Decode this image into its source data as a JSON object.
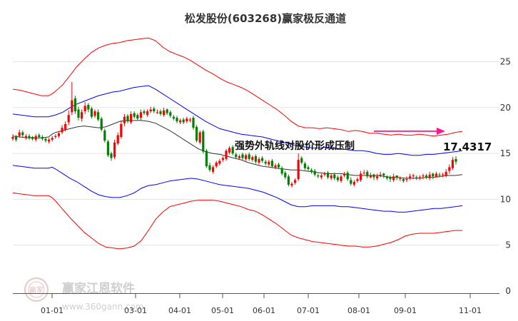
{
  "chart_data": {
    "type": "candlestick",
    "title": "松发股份(603268)赢家极反通道",
    "ylim": [
      0,
      28
    ],
    "yticks": [
      "0",
      "5",
      "10",
      "15",
      "20",
      "25"
    ],
    "xticks": [
      "01-01",
      "03-01",
      "04-01",
      "05-01",
      "06-01",
      "07-01",
      "08-01",
      "09-01",
      "11-01"
    ],
    "grid": "horizontal",
    "annotation": {
      "text": "强势外轨线对股价形成压制",
      "value": "17.4317",
      "y": 17.43
    },
    "close": [
      16.8,
      16.5,
      17.3,
      17.0,
      16.9,
      16.7,
      16.6,
      16.9,
      16.8,
      16.6,
      16.4,
      16.5,
      16.7,
      16.9,
      17.2,
      17.8,
      18.2,
      19.2,
      20.8,
      19.6,
      18.9,
      19.5,
      20.2,
      19.8,
      19.0,
      19.6,
      18.7,
      17.6,
      16.4,
      14.8,
      14.5,
      16.2,
      17.0,
      18.2,
      19.0,
      18.5,
      19.3,
      19.0,
      18.8,
      19.5,
      19.4,
      19.6,
      19.8,
      19.6,
      19.5,
      19.3,
      19.7,
      19.4,
      19.1,
      18.8,
      18.5,
      18.6,
      18.4,
      18.8,
      18.7,
      17.8,
      16.4,
      17.3,
      15.2,
      13.6,
      13.2,
      13.5,
      14.0,
      14.2,
      14.5,
      15.3,
      15.6,
      15.0,
      14.6,
      14.7,
      14.5,
      14.8,
      14.4,
      14.6,
      14.1,
      14.4,
      14.2,
      13.9,
      14.1,
      13.6,
      13.7,
      13.5,
      12.8,
      12.4,
      11.6,
      11.7,
      12.1,
      14.3,
      14.0,
      13.4,
      13.3,
      13.0,
      12.7,
      12.5,
      12.6,
      12.8,
      12.4,
      12.6,
      12.3,
      12.1,
      12.5,
      12.8,
      12.2,
      11.7,
      11.9,
      12.2,
      12.8,
      12.9,
      12.5,
      12.6,
      12.4,
      12.5,
      12.7,
      12.6,
      12.3,
      12.2,
      12.5,
      12.4,
      12.3,
      12.0,
      12.2,
      12.5,
      12.6,
      12.3,
      12.4,
      12.6,
      12.4,
      12.7,
      12.5,
      12.8,
      12.6,
      12.7,
      13.0,
      13.5,
      14.3,
      14.1
    ],
    "open": [
      16.6,
      16.9,
      16.9,
      17.3,
      16.7,
      16.9,
      16.8,
      16.5,
      17.0,
      16.8,
      16.6,
      16.3,
      16.5,
      16.8,
      16.9,
      17.3,
      17.6,
      18.4,
      19.5,
      21.0,
      19.8,
      18.8,
      19.6,
      20.3,
      19.9,
      19.1,
      19.5,
      18.8,
      17.5,
      16.3,
      15.0,
      14.6,
      16.1,
      16.8,
      18.3,
      19.1,
      18.4,
      19.4,
      19.2,
      18.9,
      19.6,
      19.2,
      19.6,
      19.9,
      19.5,
      19.6,
      19.2,
      19.8,
      19.5,
      19.0,
      18.9,
      18.4,
      18.7,
      18.5,
      18.6,
      18.9,
      17.9,
      16.2,
      17.4,
      15.3,
      13.7,
      13.0,
      13.6,
      13.9,
      14.3,
      14.4,
      15.1,
      15.7,
      14.9,
      14.5,
      14.9,
      14.4,
      14.9,
      14.3,
      14.7,
      14.0,
      14.5,
      14.1,
      13.8,
      14.2,
      13.5,
      13.8,
      13.4,
      12.9,
      12.5,
      11.5,
      11.8,
      12.2,
      14.5,
      13.9,
      13.5,
      13.2,
      13.1,
      12.6,
      12.4,
      12.7,
      12.9,
      12.3,
      12.7,
      12.4,
      12.0,
      12.6,
      12.9,
      12.1,
      11.6,
      12.0,
      12.1,
      12.9,
      13.0,
      12.4,
      12.7,
      12.3,
      12.6,
      12.8,
      12.5,
      12.4,
      12.1,
      12.6,
      12.3,
      12.2,
      12.1,
      12.3,
      12.6,
      12.4,
      12.3,
      12.5,
      12.6,
      12.3,
      12.8,
      12.4,
      12.7,
      12.7,
      12.6,
      13.1,
      13.4,
      14.4
    ],
    "high": [
      17.1,
      17.0,
      17.6,
      17.5,
      17.1,
      17.1,
      16.9,
      17.1,
      17.2,
      17.0,
      16.8,
      16.7,
      16.9,
      17.1,
      17.4,
      18.1,
      18.5,
      19.7,
      22.8,
      21.3,
      20.1,
      19.8,
      20.6,
      20.5,
      20.1,
      19.8,
      19.8,
      19.0,
      17.7,
      16.5,
      15.2,
      16.5,
      17.3,
      18.6,
      19.3,
      19.3,
      19.6,
      19.6,
      19.4,
      19.8,
      19.8,
      19.8,
      20.1,
      20.1,
      19.8,
      19.8,
      20.0,
      19.9,
      19.7,
      19.2,
      19.1,
      18.8,
      18.9,
      19.0,
      18.9,
      19.1,
      18.1,
      17.5,
      17.6,
      15.5,
      14.0,
      13.7,
      14.2,
      14.4,
      14.7,
      15.5,
      15.8,
      15.9,
      15.1,
      14.9,
      15.1,
      15.0,
      15.1,
      14.8,
      14.9,
      14.6,
      14.7,
      14.3,
      14.3,
      14.4,
      13.9,
      14.0,
      13.6,
      13.1,
      12.7,
      11.9,
      12.3,
      15.0,
      14.7,
      14.1,
      13.7,
      13.4,
      13.3,
      12.8,
      12.8,
      13.0,
      13.1,
      12.8,
      12.9,
      12.6,
      12.7,
      13.0,
      13.1,
      12.4,
      12.1,
      12.4,
      13.1,
      13.2,
      13.2,
      12.9,
      12.8,
      12.8,
      13.0,
      12.9,
      12.6,
      12.6,
      12.8,
      12.6,
      12.5,
      12.3,
      12.5,
      12.8,
      12.8,
      12.6,
      12.6,
      12.8,
      12.8,
      13.0,
      12.9,
      13.0,
      12.9,
      12.9,
      13.3,
      13.8,
      14.6,
      14.7
    ],
    "low": [
      16.4,
      16.3,
      16.7,
      16.8,
      16.5,
      16.5,
      16.4,
      16.3,
      16.6,
      16.4,
      16.2,
      16.1,
      16.3,
      16.6,
      16.7,
      17.1,
      17.4,
      18.1,
      19.2,
      19.3,
      18.6,
      18.5,
      19.3,
      19.5,
      18.8,
      18.9,
      18.5,
      17.4,
      16.2,
      14.6,
      14.2,
      14.4,
      15.9,
      16.6,
      18.0,
      18.3,
      18.2,
      18.8,
      18.6,
      18.6,
      19.2,
      19.0,
      19.4,
      19.4,
      19.3,
      19.1,
      19.0,
      19.2,
      18.9,
      18.6,
      18.3,
      18.2,
      18.2,
      18.3,
      18.4,
      17.6,
      16.2,
      16.0,
      15.0,
      13.4,
      13.0,
      12.8,
      13.4,
      13.7,
      14.1,
      14.2,
      14.9,
      14.8,
      14.4,
      14.3,
      14.3,
      14.2,
      14.2,
      14.1,
      13.9,
      13.8,
      14.0,
      13.7,
      13.6,
      13.4,
      13.3,
      13.3,
      12.6,
      12.2,
      11.4,
      11.3,
      11.6,
      12.0,
      13.8,
      13.2,
      13.1,
      12.8,
      12.5,
      12.3,
      12.2,
      12.5,
      12.2,
      12.1,
      12.1,
      11.9,
      11.8,
      12.4,
      12.0,
      11.5,
      11.4,
      11.8,
      11.9,
      12.7,
      12.3,
      12.3,
      12.1,
      12.1,
      12.4,
      12.3,
      12.1,
      11.9,
      11.9,
      12.1,
      12.0,
      11.8,
      11.9,
      12.1,
      12.2,
      12.1,
      12.1,
      12.2,
      12.2,
      12.1,
      12.2,
      12.4,
      12.4,
      12.4,
      12.4,
      12.8,
      13.2,
      13.8
    ],
    "series": [
      {
        "color": "#ff0000",
        "x": [
          0,
          10,
          20,
          30,
          40,
          50,
          55,
          60,
          70,
          80,
          90,
          100,
          110,
          120,
          130,
          140,
          150,
          160,
          170,
          180,
          190,
          200,
          210,
          220,
          230,
          240,
          250,
          260,
          270,
          280,
          290,
          300,
          310,
          320,
          330,
          340,
          350,
          360,
          370,
          380,
          390,
          400,
          410,
          420,
          430,
          440,
          450,
          460,
          470,
          480,
          490,
          500,
          510,
          520,
          530,
          540,
          550,
          560,
          570,
          580,
          590,
          600,
          610,
          620,
          630
        ],
        "values": [
          22.0,
          21.9,
          21.7,
          21.5,
          21.3,
          21.3,
          21.5,
          21.8,
          22.5,
          23.5,
          24.5,
          25.3,
          26.0,
          26.5,
          26.8,
          27.0,
          27.1,
          27.3,
          27.4,
          27.5,
          27.6,
          27.3,
          26.6,
          26.1,
          25.8,
          25.5,
          25.1,
          24.6,
          24.1,
          23.7,
          23.2,
          22.8,
          22.5,
          22.2,
          21.8,
          21.3,
          20.8,
          20.3,
          19.8,
          19.2,
          18.5,
          18.0,
          17.8,
          17.8,
          17.7,
          17.8,
          17.7,
          17.6,
          17.4,
          17.5,
          17.4,
          17.2,
          17.2,
          17.1,
          17.0,
          17.1,
          17.0,
          17.0,
          17.1,
          17.0,
          16.9,
          17.0,
          17.1,
          17.3,
          17.4
        ]
      },
      {
        "color": "#0000ff",
        "x": [
          0,
          10,
          20,
          30,
          40,
          50,
          55,
          60,
          70,
          80,
          90,
          100,
          110,
          120,
          130,
          140,
          150,
          160,
          170,
          180,
          190,
          200,
          210,
          220,
          230,
          240,
          250,
          260,
          270,
          280,
          290,
          300,
          310,
          320,
          330,
          340,
          350,
          360,
          370,
          380,
          390,
          400,
          410,
          420,
          430,
          440,
          450,
          460,
          470,
          480,
          490,
          500,
          510,
          520,
          530,
          540,
          550,
          560,
          570,
          580,
          590,
          600,
          610,
          620,
          630
        ],
        "values": [
          19.3,
          19.2,
          19.1,
          19.0,
          19.0,
          19.0,
          19.1,
          19.2,
          19.5,
          20.0,
          20.4,
          20.7,
          21.0,
          21.3,
          21.5,
          21.7,
          21.8,
          22.0,
          22.2,
          22.3,
          22.4,
          22.0,
          21.5,
          21.0,
          20.5,
          20.0,
          19.5,
          19.0,
          18.5,
          18.1,
          17.7,
          17.5,
          17.3,
          17.1,
          17.0,
          16.9,
          16.8,
          16.6,
          16.4,
          16.2,
          16.0,
          15.8,
          15.7,
          15.6,
          15.6,
          15.7,
          15.6,
          15.5,
          15.4,
          15.3,
          15.3,
          15.2,
          15.0,
          14.9,
          14.9,
          15.0,
          14.9,
          14.8,
          14.8,
          14.9,
          14.9,
          15.0,
          15.1,
          15.2,
          15.3
        ]
      },
      {
        "color": "#333333",
        "x": [
          0,
          10,
          20,
          30,
          40,
          50,
          55,
          60,
          70,
          80,
          90,
          100,
          110,
          120,
          130,
          140,
          150,
          160,
          170,
          180,
          190,
          200,
          210,
          220,
          230,
          240,
          250,
          260,
          270,
          280,
          290,
          300,
          310,
          320,
          330,
          340,
          350,
          360,
          370,
          380,
          390,
          400,
          410,
          420,
          430,
          440,
          450,
          460,
          470,
          480,
          490,
          500,
          510,
          520,
          530,
          540,
          550,
          560,
          570,
          580,
          590,
          600,
          610,
          620,
          630
        ],
        "values": [
          16.9,
          16.8,
          16.7,
          16.7,
          16.7,
          16.8,
          17.1,
          17.3,
          17.5,
          17.7,
          17.9,
          18.0,
          17.9,
          17.8,
          17.9,
          18.2,
          18.5,
          18.6,
          18.6,
          18.6,
          18.5,
          18.3,
          17.9,
          17.5,
          17.0,
          16.5,
          16.0,
          15.5,
          15.2,
          15.0,
          14.9,
          14.7,
          14.5,
          14.3,
          14.0,
          13.8,
          13.6,
          13.5,
          13.4,
          13.3,
          13.2,
          13.2,
          13.1,
          13.0,
          12.9,
          12.8,
          12.8,
          12.8,
          12.7,
          12.6,
          12.6,
          12.6,
          12.6,
          12.5,
          12.4,
          12.4,
          12.3,
          12.3,
          12.3,
          12.4,
          12.4,
          12.5,
          12.6,
          12.6,
          12.7
        ]
      },
      {
        "color": "#0000ff",
        "x": [
          0,
          10,
          20,
          30,
          40,
          50,
          55,
          60,
          70,
          80,
          90,
          100,
          110,
          120,
          130,
          140,
          150,
          160,
          170,
          180,
          190,
          200,
          210,
          220,
          230,
          240,
          250,
          260,
          270,
          280,
          290,
          300,
          310,
          320,
          330,
          340,
          350,
          360,
          370,
          380,
          390,
          400,
          410,
          420,
          430,
          440,
          450,
          460,
          470,
          480,
          490,
          500,
          510,
          520,
          530,
          540,
          550,
          560,
          570,
          580,
          590,
          600,
          610,
          620,
          630
        ],
        "values": [
          13.7,
          13.6,
          13.5,
          13.4,
          13.4,
          13.4,
          13.5,
          13.3,
          12.8,
          12.3,
          11.9,
          11.4,
          10.9,
          10.5,
          10.3,
          10.2,
          10.2,
          10.4,
          10.7,
          11.2,
          11.5,
          11.6,
          11.8,
          12.0,
          12.1,
          12.2,
          12.3,
          12.2,
          12.0,
          11.8,
          11.6,
          11.5,
          11.4,
          11.3,
          11.2,
          11.0,
          10.8,
          10.5,
          10.2,
          9.8,
          9.4,
          9.2,
          9.2,
          9.3,
          9.3,
          9.3,
          9.3,
          9.2,
          9.2,
          9.1,
          9.0,
          8.9,
          8.8,
          8.7,
          8.7,
          8.6,
          8.6,
          8.7,
          8.8,
          8.9,
          9.0,
          9.0,
          9.1,
          9.2,
          9.3
        ]
      },
      {
        "color": "#ff0000",
        "x": [
          0,
          10,
          20,
          30,
          40,
          50,
          55,
          60,
          70,
          80,
          90,
          100,
          110,
          120,
          130,
          140,
          150,
          160,
          170,
          180,
          190,
          200,
          210,
          220,
          230,
          240,
          250,
          260,
          270,
          280,
          290,
          300,
          310,
          320,
          330,
          340,
          350,
          360,
          370,
          380,
          390,
          400,
          410,
          420,
          430,
          440,
          450,
          460,
          470,
          480,
          490,
          500,
          510,
          520,
          530,
          540,
          550,
          560,
          570,
          580,
          590,
          600,
          610,
          620,
          630
        ],
        "values": [
          10.7,
          10.6,
          10.5,
          10.4,
          10.4,
          10.4,
          10.2,
          9.8,
          8.9,
          8.0,
          7.2,
          6.4,
          5.8,
          5.2,
          4.8,
          4.7,
          4.6,
          4.7,
          4.9,
          5.5,
          6.6,
          7.8,
          8.6,
          9.2,
          9.4,
          9.6,
          9.8,
          9.9,
          9.9,
          9.9,
          9.8,
          9.6,
          9.4,
          9.2,
          8.9,
          8.7,
          8.3,
          7.8,
          7.3,
          6.7,
          6.1,
          5.8,
          5.6,
          5.4,
          5.3,
          5.2,
          5.1,
          5.0,
          4.9,
          4.9,
          4.8,
          4.8,
          4.9,
          5.1,
          5.3,
          5.6,
          6.0,
          6.2,
          6.3,
          6.3,
          6.3,
          6.4,
          6.5,
          6.6,
          6.6
        ]
      }
    ]
  },
  "watermark": {
    "brand": "赢家江恩软件",
    "url": "www.360gann.com",
    "logo_text": "赢家"
  }
}
